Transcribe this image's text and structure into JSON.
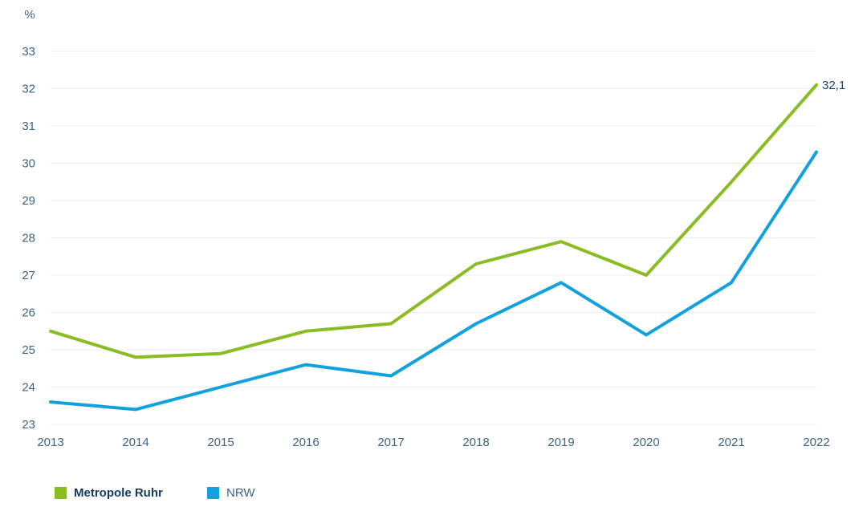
{
  "chart": {
    "unit_label": "%",
    "end_value_label": "32,1"
  },
  "chart_data": {
    "type": "line",
    "title": "",
    "xlabel": "",
    "ylabel": "%",
    "x": [
      "2013",
      "2014",
      "2015",
      "2016",
      "2017",
      "2018",
      "2019",
      "2020",
      "2021",
      "2022"
    ],
    "ylim": [
      23,
      33
    ],
    "yticks": [
      23,
      24,
      25,
      26,
      27,
      28,
      29,
      30,
      31,
      32,
      33
    ],
    "grid": true,
    "legend_position": "bottom",
    "series": [
      {
        "name": "Metropole Ruhr",
        "color": "#8abc24",
        "values": [
          25.5,
          24.8,
          24.9,
          25.5,
          25.7,
          27.3,
          27.9,
          27.0,
          29.5,
          32.1
        ],
        "end_label": "32,1"
      },
      {
        "name": "NRW",
        "color": "#12a1dc",
        "values": [
          23.6,
          23.4,
          24.0,
          24.6,
          24.3,
          25.7,
          26.8,
          25.4,
          26.8,
          30.3
        ],
        "end_label": ""
      }
    ]
  },
  "legend": {
    "items": [
      {
        "label": "Metropole Ruhr",
        "color": "#8abc24",
        "bold": true
      },
      {
        "label": "NRW",
        "color": "#12a1dc",
        "bold": false
      }
    ]
  },
  "colors": {
    "axis_text": "#3d6480",
    "value_label_text": "#1c4868",
    "gridline": "#e9eef2",
    "background": "#ffffff"
  }
}
